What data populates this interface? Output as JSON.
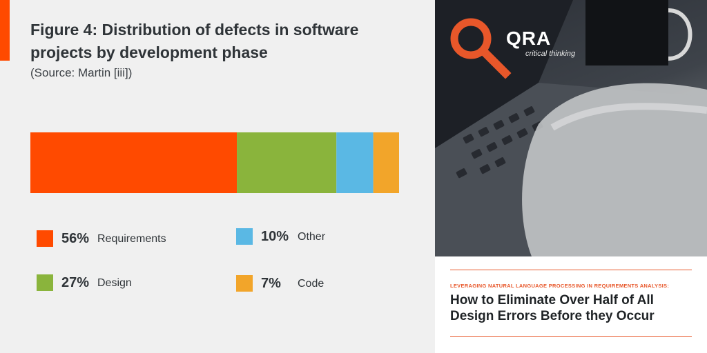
{
  "figure": {
    "title": "Figure 4: Distribution of defects in software projects by development phase",
    "source": "(Source: Martin [iii])"
  },
  "colors": {
    "accent": "#ff4a00",
    "requirements": "#ff4a00",
    "design": "#8ab43c",
    "other": "#5ab8e4",
    "code": "#f2a52a",
    "panel_bg": "#f0f0f0"
  },
  "chart_data": {
    "type": "bar",
    "stacked": true,
    "orientation": "horizontal",
    "unit": "%",
    "series": [
      {
        "name": "Requirements",
        "value": 56,
        "label": "56%"
      },
      {
        "name": "Design",
        "value": 27,
        "label": "27%"
      },
      {
        "name": "Other",
        "value": 10,
        "label": "10%"
      },
      {
        "name": "Code",
        "value": 7,
        "label": "7%"
      }
    ],
    "legend_placement": "bottom"
  },
  "cover": {
    "brand": "QRA",
    "tagline": "critical thinking",
    "logo_icon": "magnifier-icon",
    "kicker": "LEVERAGING NATURAL LANGUAGE PROCESSING IN REQUIREMENTS ANALYSIS:",
    "headline_line1": "How to Eliminate Over Half of All",
    "headline_line2": "Design Errors Before they Occur"
  }
}
